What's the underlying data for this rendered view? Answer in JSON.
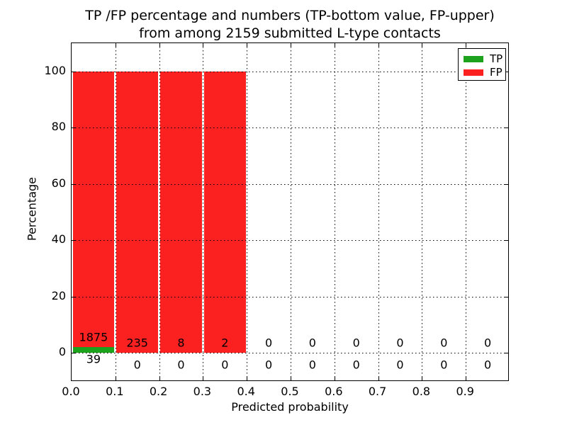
{
  "title": {
    "line1": "TP /FP percentage and numbers (TP-bottom value, FP-upper)",
    "line2": "from among 2159 submitted L-type contacts"
  },
  "axes": {
    "xlabel": "Predicted probability",
    "ylabel": "Percentage",
    "x_tick_labels": [
      "0.0",
      "0.1",
      "0.2",
      "0.3",
      "0.4",
      "0.5",
      "0.6",
      "0.7",
      "0.8",
      "0.9"
    ],
    "y_tick_labels": [
      "0",
      "20",
      "40",
      "60",
      "80",
      "100"
    ]
  },
  "legend": {
    "items": [
      {
        "label": "TP",
        "color": "#1da21d"
      },
      {
        "label": "FP",
        "color": "#fc2121"
      }
    ]
  },
  "chart_data": {
    "type": "bar",
    "stacked": true,
    "title": "TP /FP percentage and numbers (TP-bottom value, FP-upper) from among 2159 submitted L-type contacts",
    "xlabel": "Predicted probability",
    "ylabel": "Percentage",
    "total_contacts": 2159,
    "bin_starts": [
      0.0,
      0.1,
      0.2,
      0.3,
      0.4,
      0.5,
      0.6,
      0.7,
      0.8,
      0.9
    ],
    "bin_width": 0.1,
    "xlim": [
      0.0,
      1.0
    ],
    "ylim": [
      -10.3,
      109.9
    ],
    "yticks": [
      0,
      20,
      40,
      60,
      80,
      100
    ],
    "xticks": [
      0.0,
      0.1,
      0.2,
      0.3,
      0.4,
      0.5,
      0.6,
      0.7,
      0.8,
      0.9
    ],
    "grid": {
      "style": "dotted",
      "color": "#000000",
      "axes": "both",
      "over_bars": true
    },
    "legend_position": "upper right",
    "series": [
      {
        "name": "TP",
        "color": "#1da21d",
        "counts": [
          39,
          0,
          0,
          0,
          0,
          0,
          0,
          0,
          0,
          0
        ],
        "percents": [
          2.04,
          0,
          0,
          0,
          0,
          0,
          0,
          0,
          0,
          0
        ]
      },
      {
        "name": "FP",
        "color": "#fc2121",
        "counts": [
          1875,
          235,
          8,
          2,
          0,
          0,
          0,
          0,
          0,
          0
        ],
        "percents": [
          97.96,
          100,
          100,
          100,
          0,
          0,
          0,
          0,
          0,
          0
        ]
      }
    ]
  }
}
